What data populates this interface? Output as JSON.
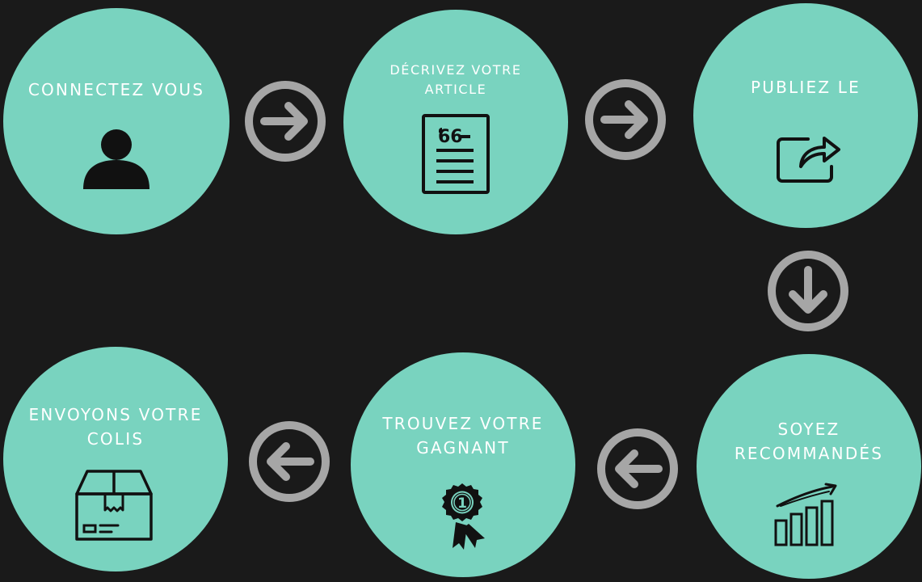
{
  "steps": [
    {
      "id": "connect",
      "label": "CONNECTEZ VOUS",
      "icon": "user-icon"
    },
    {
      "id": "describe",
      "label": "DÉCRIVEZ VOTRE ARTICLE",
      "icon": "document-icon"
    },
    {
      "id": "publish",
      "label": "PUBLIEZ LE",
      "icon": "share-icon"
    },
    {
      "id": "recommended",
      "label": "SOYEZ RECOMMANDÉS",
      "icon": "growth-chart-icon"
    },
    {
      "id": "winner",
      "label": "TROUVEZ VOTRE GAGNANT",
      "icon": "award-ribbon-icon"
    },
    {
      "id": "ship",
      "label": "ENVOYONS VOTRE COLIS",
      "icon": "package-box-icon"
    }
  ],
  "arrows": [
    {
      "icon": "arrow-right-icon",
      "direction": "right"
    },
    {
      "icon": "arrow-right-icon",
      "direction": "right"
    },
    {
      "icon": "arrow-down-icon",
      "direction": "down"
    },
    {
      "icon": "arrow-left-icon",
      "direction": "left"
    },
    {
      "icon": "arrow-left-icon",
      "direction": "left"
    }
  ],
  "colors": {
    "background": "#1a1a1a",
    "circle": "#79d3bf",
    "label": "#ffffff",
    "icon": "#111111",
    "arrow": "#a6a6a6"
  }
}
